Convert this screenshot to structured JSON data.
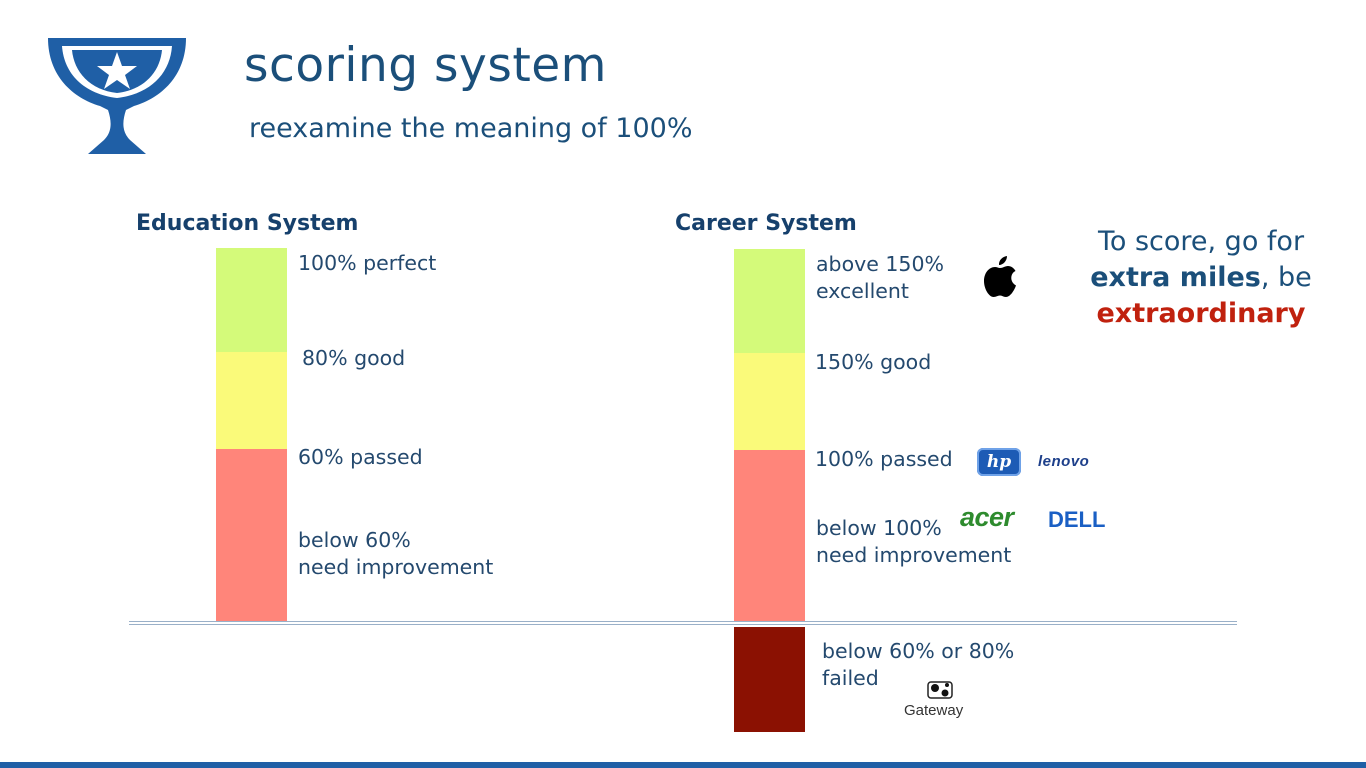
{
  "slide": {
    "title": "scoring system",
    "subtitle": "reexamine the meaning of 100%",
    "icon": "trophy-icon",
    "accent_color": "#1f5fa6"
  },
  "education": {
    "heading": "Education System",
    "levels": [
      {
        "label": "100% perfect",
        "color": "#d4fa7a"
      },
      {
        "label": "80% good",
        "color": "#fafa7a"
      },
      {
        "label": "60% passed",
        "color": "#ff857a"
      },
      {
        "label": "below 60%\nneed improvement",
        "color": "#ff857a"
      }
    ]
  },
  "career": {
    "heading": "Career System",
    "levels": [
      {
        "label": "above 150%\nexcellent",
        "color": "#d4fa7a"
      },
      {
        "label": "150% good",
        "color": "#fafa7a"
      },
      {
        "label": "100% passed",
        "color": "#ff857a"
      },
      {
        "label": "below 100%\nneed improvement",
        "color": "#ff857a"
      },
      {
        "label": "below 60% or 80%\nfailed",
        "color": "#8b1102"
      }
    ],
    "logos": {
      "apple": "apple-logo",
      "hp": "hp",
      "lenovo": "lenovo",
      "acer": "acer",
      "dell": "DELL",
      "gateway": "Gateway"
    }
  },
  "quote": {
    "line1": "To score, go for",
    "bold": "extra miles",
    "line2_rest": ", be",
    "red": "extraordinary",
    "red_color": "#c0210e"
  }
}
